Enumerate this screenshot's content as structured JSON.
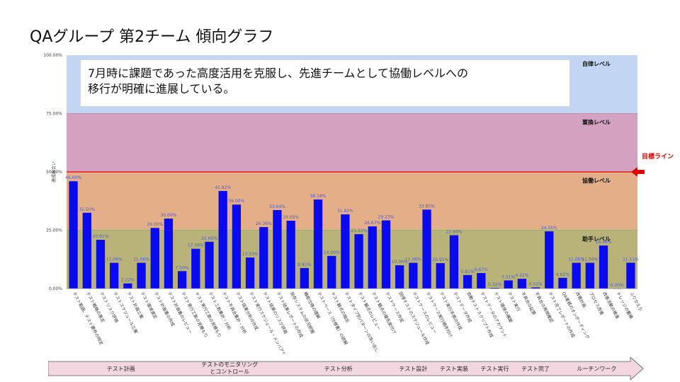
{
  "title": "QAグループ 第2チーム 傾向グラフ",
  "annotation": {
    "line1": "7月時に課題であった高度活用を克服し、先進チームとして協働レベルへの",
    "line2": "移行が明確に進展している。"
  },
  "chart_data": {
    "type": "bar",
    "ylabel": "達成度合い",
    "ylim": [
      0,
      100
    ],
    "yticks": [
      "0.00%",
      "25.00%",
      "50.00%",
      "75.00%",
      "100.00%"
    ],
    "bar_color": "#0a0aee",
    "bands": [
      {
        "name": "助手レベル",
        "from": 0,
        "to": 25,
        "color": "#b9b37a"
      },
      {
        "name": "協働レベル",
        "from": 25,
        "to": 50,
        "color": "#e3ae88"
      },
      {
        "name": "置換レベル",
        "from": 50,
        "to": 75,
        "color": "#d2a2c0"
      },
      {
        "name": "自律レベル",
        "from": 75,
        "to": 100,
        "color": "#c2d6f4"
      }
    ],
    "target_line": {
      "label": "目標ライン",
      "value": 50,
      "color": "#e00000"
    },
    "categories": [
      "テスト範囲、テスト要件の特定",
      "テスト戦略の策定",
      "テストリスク評価",
      "テストスケジュール立案",
      "テスト計画立案",
      "テスト環境選定",
      "テスト計画書の作成",
      "テスト計画書のレビュー",
      "テスト実行工数の見積もり",
      "テスト実行工数の見積もり",
      "テスト工数集計・分析",
      "テスト不具合集計・分析",
      "テスト結果分析の作成",
      "テスト実行スケジュール・メンバアサイン",
      "テスト結果のリスク評価",
      "テスト結果レポートの作成",
      "既存システムの状況把握",
      "機能仕様の理解",
      "テストベース（仕様書）の読解",
      "テスト観点の抽出",
      "テストタイプ別パターンの洗い出し",
      "テスト観点のレビュー",
      "テスト観点の優先度付け",
      "テストケース作成",
      "回帰テストのスケジュール作成",
      "テストケースのレビュー",
      "テストケース実行順序付け",
      "テスト実行手順の作成",
      "テストデータ作成",
      "自動テストスクリプト作成",
      "テストデータのアカウント",
      "テスト環境の構築",
      "テスト実行",
      "不具合の起票",
      "不具合の再現確認",
      "テスト完了レポートの作成",
      "QA業務のオンボーディング",
      "改善計画",
      "プロセス改善",
      "改善活動の推進",
      "ナレッジの蓄積",
      "ふりかえり"
    ],
    "values": [
      46.0,
      32.5,
      20.91,
      11.06,
      2.22,
      11.06,
      26.0,
      30.0,
      7.5,
      17.06,
      20.06,
      41.82,
      36.0,
      13.33,
      26.36,
      33.64,
      29.09,
      8.81,
      38.18,
      14.0,
      31.82,
      23.33,
      26.67,
      29.23,
      10.0,
      11.06,
      33.85,
      10.91,
      22.86,
      5.81,
      6.67,
      0.32,
      3.51,
      4.21,
      0.51,
      24.55,
      4.62,
      11.06,
      11.06,
      18.46,
      0.0,
      11.11
    ],
    "value_labels": [
      "46.00%",
      "32.50%",
      "20.91%",
      "11.06%",
      "2.22%",
      "11.06%",
      "26.00%",
      "30.00%",
      "7.50%",
      "17.06%",
      "20.06%",
      "41.82%",
      "36.00%",
      "13.33%",
      "26.36%",
      "33.64%",
      "29.09%",
      "8.81%",
      "38.18%",
      "14.00%",
      "31.82%",
      "23.33%",
      "26.67%",
      "29.23%",
      "10.00%",
      "11.06%",
      "33.85%",
      "10.91%",
      "22.86%",
      "5.81%",
      "6.67%",
      "0.32%",
      "3.51%",
      "4.21%",
      "0.51%",
      "24.55%",
      "4.62%",
      "11.06%",
      "11.06%",
      "18.46%",
      "0.00%",
      "11.11%"
    ]
  },
  "phases": [
    {
      "label": "テスト計画",
      "start": 0,
      "end": 8
    },
    {
      "label": "テストのモニタリング\nとコントロール",
      "start": 8,
      "end": 16
    },
    {
      "label": "テスト分析",
      "start": 16,
      "end": 24
    },
    {
      "label": "テスト設計",
      "start": 24,
      "end": 27
    },
    {
      "label": "テスト実装",
      "start": 27,
      "end": 30
    },
    {
      "label": "テスト実行",
      "start": 30,
      "end": 33
    },
    {
      "label": "テスト完了",
      "start": 33,
      "end": 36
    },
    {
      "label": "ルーチンワーク",
      "start": 36,
      "end": 42
    }
  ],
  "phase_color": "#f2d6e0"
}
